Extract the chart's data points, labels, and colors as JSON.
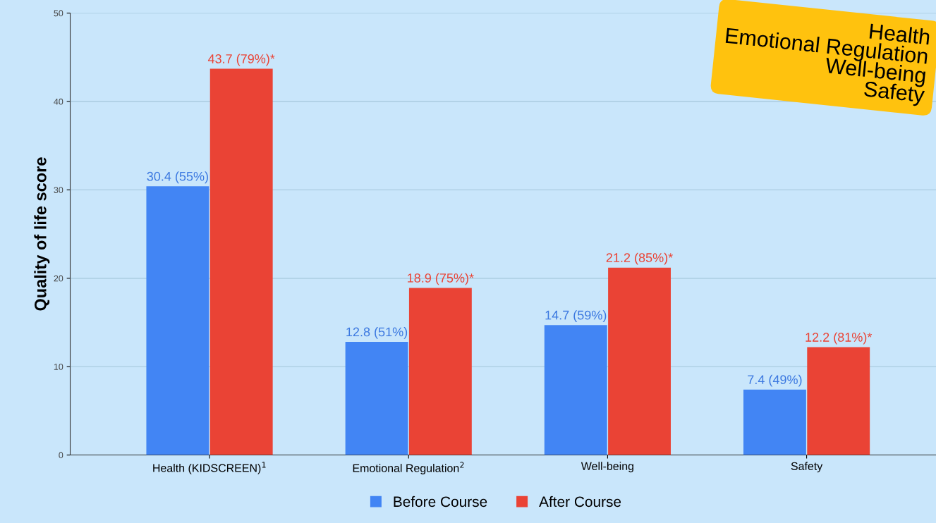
{
  "chart_data": {
    "type": "bar",
    "ylabel": "Quality of life score",
    "categories": [
      "Health (KIDSCREEN)$^{1}$",
      "Emotional Regulation$^{2}$",
      "Well-being",
      "Safety"
    ],
    "series": [
      {
        "name": "Before Course",
        "color": "#4285f4",
        "values": [
          30.4,
          12.8,
          14.7,
          7.4
        ],
        "value_labels": [
          "30.4 (55%)",
          "12.8 (51%)",
          "14.7 (59%)",
          "7.4 (49%)"
        ]
      },
      {
        "name": "After Course",
        "color": "#ea4335",
        "values": [
          43.7,
          18.9,
          21.2,
          12.2
        ],
        "value_labels": [
          "43.7 (79%)*",
          "18.9 (75%)*",
          "21.2 (85%)*",
          "12.2 (81%)*"
        ]
      }
    ],
    "annotations": [
      "Health",
      "Emotional Regulation",
      "Well-being",
      "Safety"
    ],
    "ylim": [
      0,
      50
    ],
    "yticks": [
      0,
      10,
      20,
      30,
      40,
      50
    ],
    "grid": "y",
    "legend": "bottom"
  }
}
